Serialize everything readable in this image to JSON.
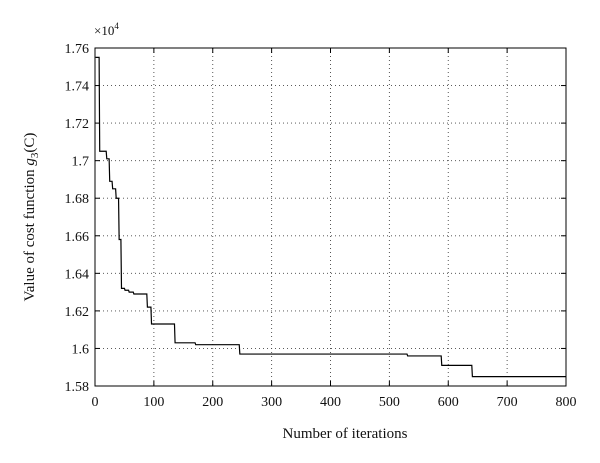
{
  "chart_data": {
    "type": "line",
    "xlabel": "Number of iterations",
    "ylabel": "Value of cost function",
    "ylabel_symbol": "g",
    "ylabel_sub": "3",
    "ylabel_arg": "(C)",
    "y_multiplier_base": "×10",
    "y_multiplier_exp": "4",
    "xlim": [
      0,
      800
    ],
    "ylim": [
      1.58,
      1.76
    ],
    "x_ticks": [
      0,
      100,
      200,
      300,
      400,
      500,
      600,
      700,
      800
    ],
    "x_tick_labels": [
      "0",
      "100",
      "200",
      "300",
      "400",
      "500",
      "600",
      "700",
      "800"
    ],
    "y_ticks": [
      1.58,
      1.6,
      1.62,
      1.64,
      1.66,
      1.68,
      1.7,
      1.72,
      1.74,
      1.76
    ],
    "y_tick_labels": [
      "1.58",
      "1.6",
      "1.62",
      "1.64",
      "1.66",
      "1.68",
      "1.7",
      "1.72",
      "1.74",
      "1.76"
    ],
    "grid": true,
    "grid_style": "dotted",
    "line_color": "#000000",
    "series": [
      {
        "step": true,
        "x": [
          1,
          7,
          8,
          19,
          20,
          24,
          25,
          29,
          30,
          35,
          36,
          40,
          41,
          44,
          45,
          50,
          51,
          57,
          58,
          65,
          66,
          75,
          76,
          88,
          89,
          95,
          96,
          135,
          136,
          170,
          171,
          245,
          246,
          530,
          531,
          588,
          589,
          640,
          641,
          800
        ],
        "y": [
          1.755,
          1.755,
          1.705,
          1.705,
          1.701,
          1.701,
          1.689,
          1.689,
          1.685,
          1.685,
          1.68,
          1.68,
          1.658,
          1.658,
          1.632,
          1.632,
          1.631,
          1.631,
          1.63,
          1.63,
          1.629,
          1.629,
          1.629,
          1.629,
          1.622,
          1.622,
          1.613,
          1.613,
          1.603,
          1.603,
          1.602,
          1.602,
          1.597,
          1.597,
          1.596,
          1.596,
          1.591,
          1.591,
          1.585,
          1.585
        ]
      }
    ]
  }
}
